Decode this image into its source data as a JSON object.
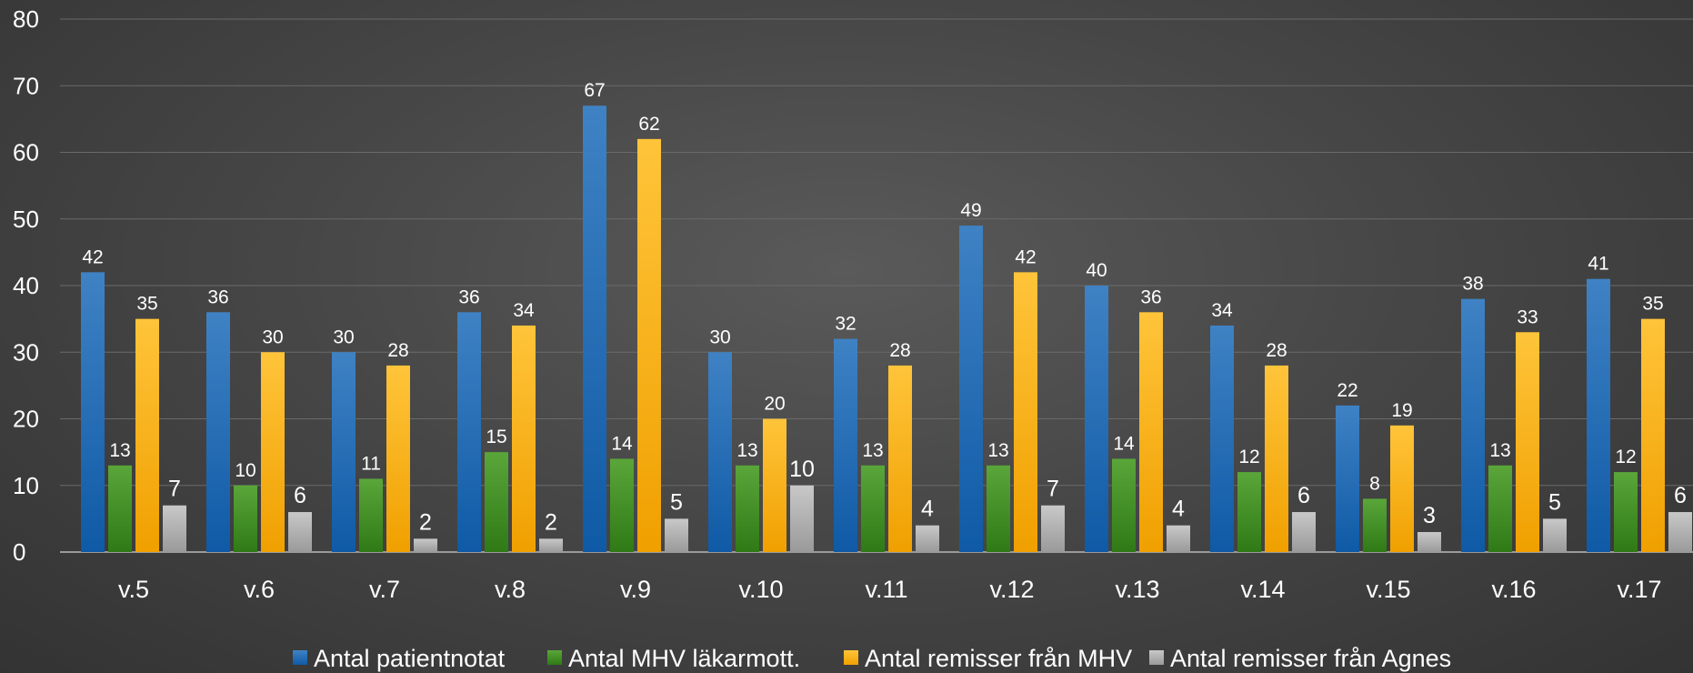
{
  "chart_data": {
    "type": "bar",
    "title": "",
    "xlabel": "",
    "ylabel": "",
    "ylim": [
      0,
      80
    ],
    "yticks": [
      0,
      10,
      20,
      30,
      40,
      50,
      60,
      70,
      80
    ],
    "grid": true,
    "legend_position": "bottom",
    "categories": [
      "v.5",
      "v.6",
      "v.7",
      "v.8",
      "v.9",
      "v.10",
      "v.11",
      "v.12",
      "v.13",
      "v.14",
      "v.15",
      "v.16",
      "v.17"
    ],
    "series": [
      {
        "name": "Antal patientnotat",
        "color": "#2e75b6",
        "values": [
          42,
          36,
          30,
          36,
          67,
          30,
          32,
          49,
          40,
          34,
          22,
          38,
          41
        ]
      },
      {
        "name": "Antal MHV läkarmott.",
        "color": "#4e9a2a",
        "values": [
          13,
          10,
          11,
          15,
          14,
          13,
          13,
          13,
          14,
          12,
          8,
          13,
          12
        ]
      },
      {
        "name": "Antal remisser från MHV",
        "color": "#ffb81c",
        "values": [
          35,
          30,
          28,
          34,
          62,
          20,
          28,
          42,
          36,
          28,
          19,
          33,
          35
        ]
      },
      {
        "name": "Antal remisser från Agnes",
        "color": "#b4b4b4",
        "values": [
          7,
          6,
          2,
          2,
          5,
          10,
          4,
          7,
          4,
          6,
          3,
          5,
          6
        ]
      }
    ]
  }
}
